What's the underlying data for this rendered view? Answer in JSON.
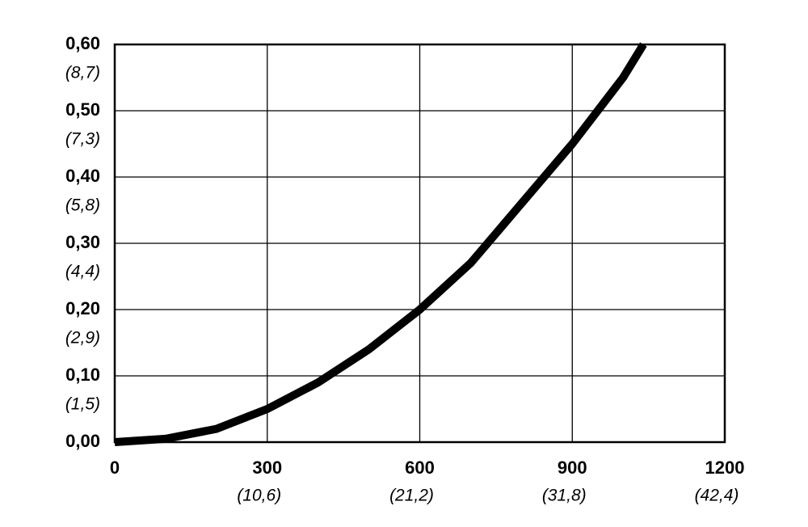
{
  "chart_data": {
    "type": "line",
    "x": [
      0,
      100,
      200,
      300,
      400,
      500,
      600,
      700,
      800,
      900,
      1000,
      1040
    ],
    "series": [
      {
        "color": "#000000",
        "values": [
          0,
          0.005,
          0.02,
          0.05,
          0.09,
          0.14,
          0.2,
          0.27,
          0.36,
          0.45,
          0.55,
          0.6
        ]
      }
    ],
    "xlim": [
      0,
      1200
    ],
    "xticks": [
      0,
      300,
      600,
      900,
      1200
    ],
    "xtick_sublabels": [
      null,
      "(10,6)",
      "(21,2)",
      "(31,8)",
      "(42,4)"
    ],
    "ylim": [
      0,
      0.6
    ],
    "yticks": [
      {
        "value": 0,
        "label": "0,00"
      },
      {
        "value": 0.1,
        "label": "0,10"
      },
      {
        "value": 0.2,
        "label": "0,20"
      },
      {
        "value": 0.3,
        "label": "0,30"
      },
      {
        "value": 0.4,
        "label": "0,40"
      },
      {
        "value": 0.5,
        "label": "0,50"
      },
      {
        "value": 0.6,
        "label": "0,60"
      }
    ],
    "ytick_sublabels": [
      null,
      "(1,5)",
      "(2,9)",
      "(4,4)",
      "(5,8)",
      "(7,3)",
      "(8,7)"
    ],
    "grid": true
  }
}
